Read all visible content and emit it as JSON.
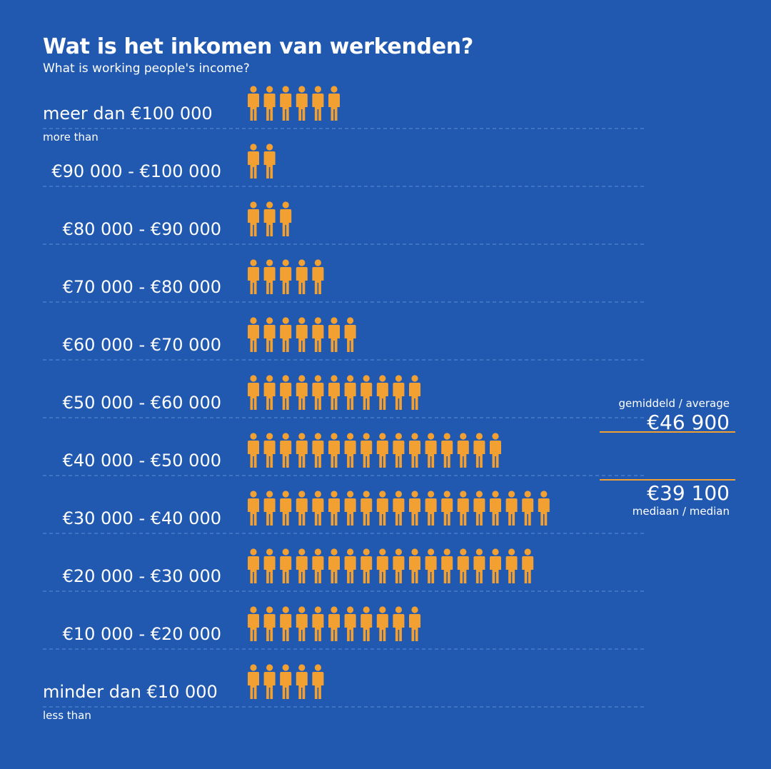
{
  "chart_data": {
    "type": "pictogram",
    "title": "Wat is het inkomen van werkenden?",
    "subtitle": "What is working people's income?",
    "categories": [
      "meer dan €100 000",
      "€90 000 - €100 000",
      "€80 000 - €90 000",
      "€70 000 - €80 000",
      "€60 000 - €70 000",
      "€50 000 - €60 000",
      "€40 000 - €50 000",
      "€30 000 - €40 000",
      "€20 000 - €30 000",
      "€10 000 - €20 000",
      "minder dan €10 000"
    ],
    "category_sublabels": [
      "more than",
      "",
      "",
      "",
      "",
      "",
      "",
      "",
      "",
      "",
      "less than"
    ],
    "values": [
      6,
      2,
      3,
      5,
      7,
      11,
      16,
      19,
      18,
      11,
      5
    ],
    "average": {
      "label": "gemiddeld / average",
      "value": "€46 900"
    },
    "median": {
      "label": "mediaan / median",
      "value": "€39 100"
    }
  },
  "colors": {
    "background": "#2159b1",
    "icon": "#f2a032",
    "divider": "#5b8fd6",
    "marker_line": "#f2a032",
    "text": "#ffffff"
  }
}
